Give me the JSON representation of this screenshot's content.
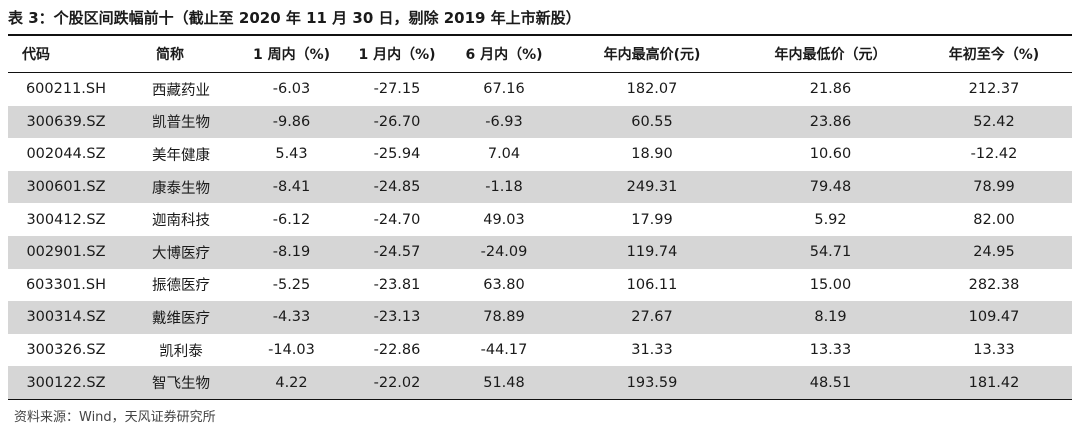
{
  "title": "表 3：个股区间跌幅前十（截止至 2020 年 11 月 30 日，剔除 2019 年上市新股）",
  "headers": [
    "代码",
    "简称",
    "1 周内（%)",
    "1 月内（%)",
    "6 月内（%)",
    "年内最高价(元)",
    "年内最低价（元）",
    "年初至今（%)"
  ],
  "rows": [
    [
      "600211.SH",
      "西藏药业",
      "-6.03",
      "-27.15",
      "67.16",
      "182.07",
      "21.86",
      "212.37"
    ],
    [
      "300639.SZ",
      "凯普生物",
      "-9.86",
      "-26.70",
      "-6.93",
      "60.55",
      "23.86",
      "52.42"
    ],
    [
      "002044.SZ",
      "美年健康",
      "5.43",
      "-25.94",
      "7.04",
      "18.90",
      "10.60",
      "-12.42"
    ],
    [
      "300601.SZ",
      "康泰生物",
      "-8.41",
      "-24.85",
      "-1.18",
      "249.31",
      "79.48",
      "78.99"
    ],
    [
      "300412.SZ",
      "迦南科技",
      "-6.12",
      "-24.70",
      "49.03",
      "17.99",
      "5.92",
      "82.00"
    ],
    [
      "002901.SZ",
      "大博医疗",
      "-8.19",
      "-24.57",
      "-24.09",
      "119.74",
      "54.71",
      "24.95"
    ],
    [
      "603301.SH",
      "振德医疗",
      "-5.25",
      "-23.81",
      "63.80",
      "106.11",
      "15.00",
      "282.38"
    ],
    [
      "300314.SZ",
      "戴维医疗",
      "-4.33",
      "-23.13",
      "78.89",
      "27.67",
      "8.19",
      "109.47"
    ],
    [
      "300326.SZ",
      "凯利泰",
      "-14.03",
      "-22.86",
      "-44.17",
      "31.33",
      "13.33",
      "13.33"
    ],
    [
      "300122.SZ",
      "智飞生物",
      "4.22",
      "-22.02",
      "51.48",
      "193.59",
      "48.51",
      "181.42"
    ]
  ],
  "source": "资料来源：Wind，天风证券研究所"
}
